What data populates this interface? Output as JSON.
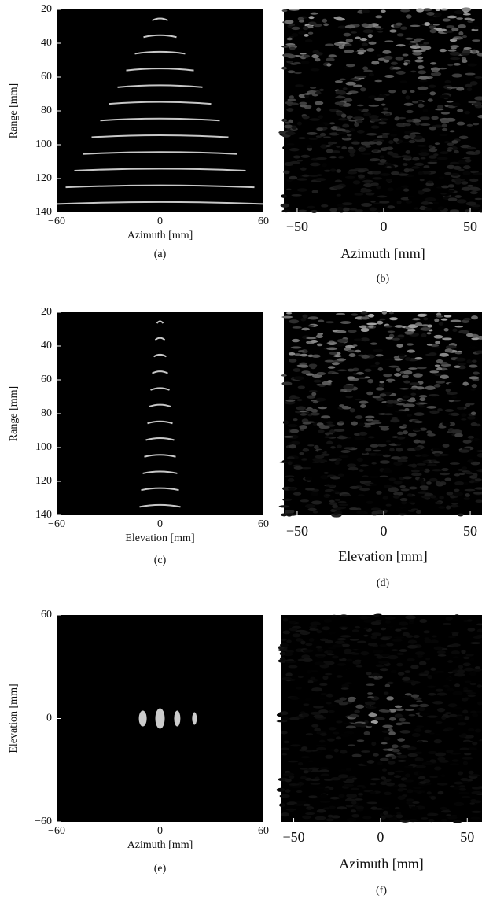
{
  "chart_data": [
    {
      "type": "image",
      "caption": "(a)",
      "xlabel": "Azimuth [mm]",
      "ylabel": "Range [mm]",
      "xlim": [
        -60,
        60
      ],
      "xticks": [
        {
          "value": -60,
          "label": "−60"
        },
        0,
        60
      ],
      "ylim": [
        140,
        20
      ],
      "yticks": [
        20,
        40,
        60,
        80,
        100,
        120,
        140
      ]
    },
    {
      "type": "image",
      "caption": "(b)",
      "xlabel": "Azimuth [mm]",
      "xlim": [
        -57.7,
        56.8
      ],
      "xticks": [
        {
          "value": -50,
          "label": "−50"
        },
        0,
        50
      ]
    },
    {
      "type": "image",
      "caption": "(c)",
      "xlabel": "Elevation [mm]",
      "ylabel": "Range [mm]",
      "xlim": [
        -60,
        60
      ],
      "xticks": [
        {
          "value": -60,
          "label": "−60"
        },
        0,
        60
      ],
      "ylim": [
        140,
        20
      ],
      "yticks": [
        20,
        40,
        60,
        80,
        100,
        120,
        140
      ]
    },
    {
      "type": "image",
      "caption": "(d)",
      "xlabel": "Elevation [mm]",
      "xlim": [
        -57.7,
        56.8
      ],
      "xticks": [
        {
          "value": -50,
          "label": "−50"
        },
        0,
        50
      ]
    },
    {
      "type": "image",
      "caption": "(e)",
      "xlabel": "Azimuth [mm]",
      "ylabel": "Elevation [mm]",
      "xlim": [
        -60,
        60
      ],
      "xticks": [
        {
          "value": -60,
          "label": "−60"
        },
        0,
        60
      ],
      "ylim": [
        -60,
        60
      ],
      "yticks": [
        {
          "value": -60,
          "label": "−60"
        },
        0,
        60
      ]
    },
    {
      "type": "image",
      "caption": "(f)",
      "xlabel": "Azimuth [mm]",
      "xlim": [
        -57.5,
        58.5
      ],
      "xticks": [
        {
          "value": -50,
          "label": "−50"
        },
        0,
        50
      ]
    }
  ]
}
